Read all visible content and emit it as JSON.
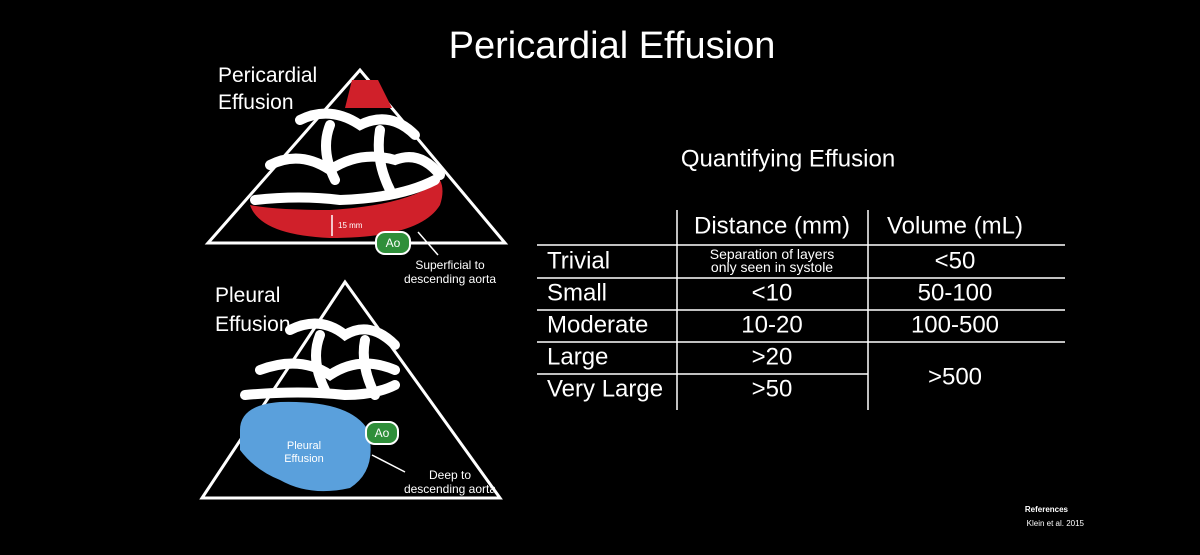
{
  "title": "Pericardial Effusion",
  "pericardial_diagram": {
    "label": [
      "Pericardial",
      "Effusion"
    ],
    "measure": "15 mm",
    "aorta": "Ao",
    "note": [
      "Superficial to",
      "descending aorta"
    ]
  },
  "pleural_diagram": {
    "label": [
      "Pleural",
      "Effusion"
    ],
    "region": [
      "Pleural",
      "Effusion"
    ],
    "aorta": "Ao",
    "note": [
      "Deep to",
      "descending aorta"
    ]
  },
  "table": {
    "title": "Quantifying Effusion",
    "headers": [
      "Distance (mm)",
      "Volume (mL)"
    ],
    "rows": [
      {
        "label": "Trivial",
        "distance": [
          "Separation of layers",
          "only seen in systole"
        ],
        "volume": "<50"
      },
      {
        "label": "Small",
        "distance": "<10",
        "volume": "50-100"
      },
      {
        "label": "Moderate",
        "distance": "10-20",
        "volume": "100-500"
      },
      {
        "label": "Large",
        "distance": ">20",
        "volume": ">500"
      },
      {
        "label": "Very Large",
        "distance": ">50"
      }
    ]
  },
  "references": {
    "heading": "References",
    "citation": "Klein et al. 2015"
  }
}
